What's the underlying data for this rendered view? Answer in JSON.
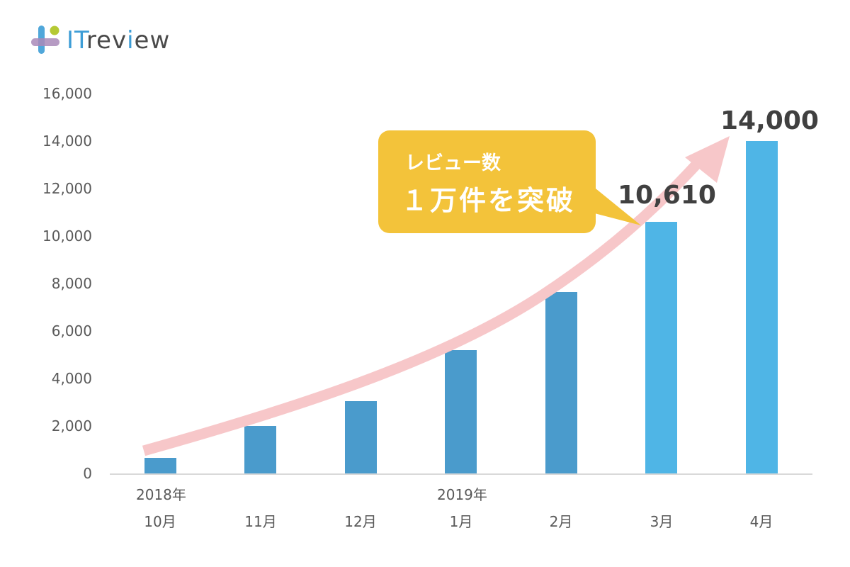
{
  "logo": {
    "text_prefix": "IT",
    "text_suffix_a": "rev",
    "text_i": "i",
    "text_suffix_b": "ew",
    "full": "ITreview"
  },
  "callout": {
    "line1": "レビュー数",
    "line2": "１万件を突破",
    "bg_color": "#f3c33a"
  },
  "annotations": {
    "march_value": "10,610",
    "april_value": "14,000"
  },
  "colors": {
    "bar_dark": "#4a9bcc",
    "bar_light": "#4fb5e6",
    "arrow": "#f7c7c9",
    "axis": "#d9d9d9"
  },
  "chart_data": {
    "type": "bar",
    "title": "",
    "xlabel": "",
    "ylabel": "",
    "categories": [
      "10月",
      "11月",
      "12月",
      "1月",
      "2月",
      "3月",
      "4月"
    ],
    "category_groups": [
      {
        "label": "2018年",
        "start_index": 0
      },
      {
        "label": "2019年",
        "start_index": 3
      }
    ],
    "values": [
      650,
      2000,
      3050,
      5200,
      7650,
      10610,
      14000
    ],
    "bar_colors": [
      "#4a9bcc",
      "#4a9bcc",
      "#4a9bcc",
      "#4a9bcc",
      "#4a9bcc",
      "#4fb5e6",
      "#4fb5e6"
    ],
    "data_labels": {
      "5": "10,610",
      "6": "14,000"
    },
    "yticks": [
      "0",
      "2,000",
      "4,000",
      "6,000",
      "8,000",
      "10,000",
      "12,000",
      "14,000",
      "16,000"
    ],
    "ylim": [
      0,
      16000
    ],
    "grid": false,
    "legend": "none",
    "annotations": [
      {
        "type": "trend-arrow",
        "color": "#f7c7c9",
        "from": "10月",
        "to": "4月"
      },
      {
        "type": "callout",
        "text": "レビュー数 １万件を突破",
        "points_to": "3月"
      }
    ]
  }
}
